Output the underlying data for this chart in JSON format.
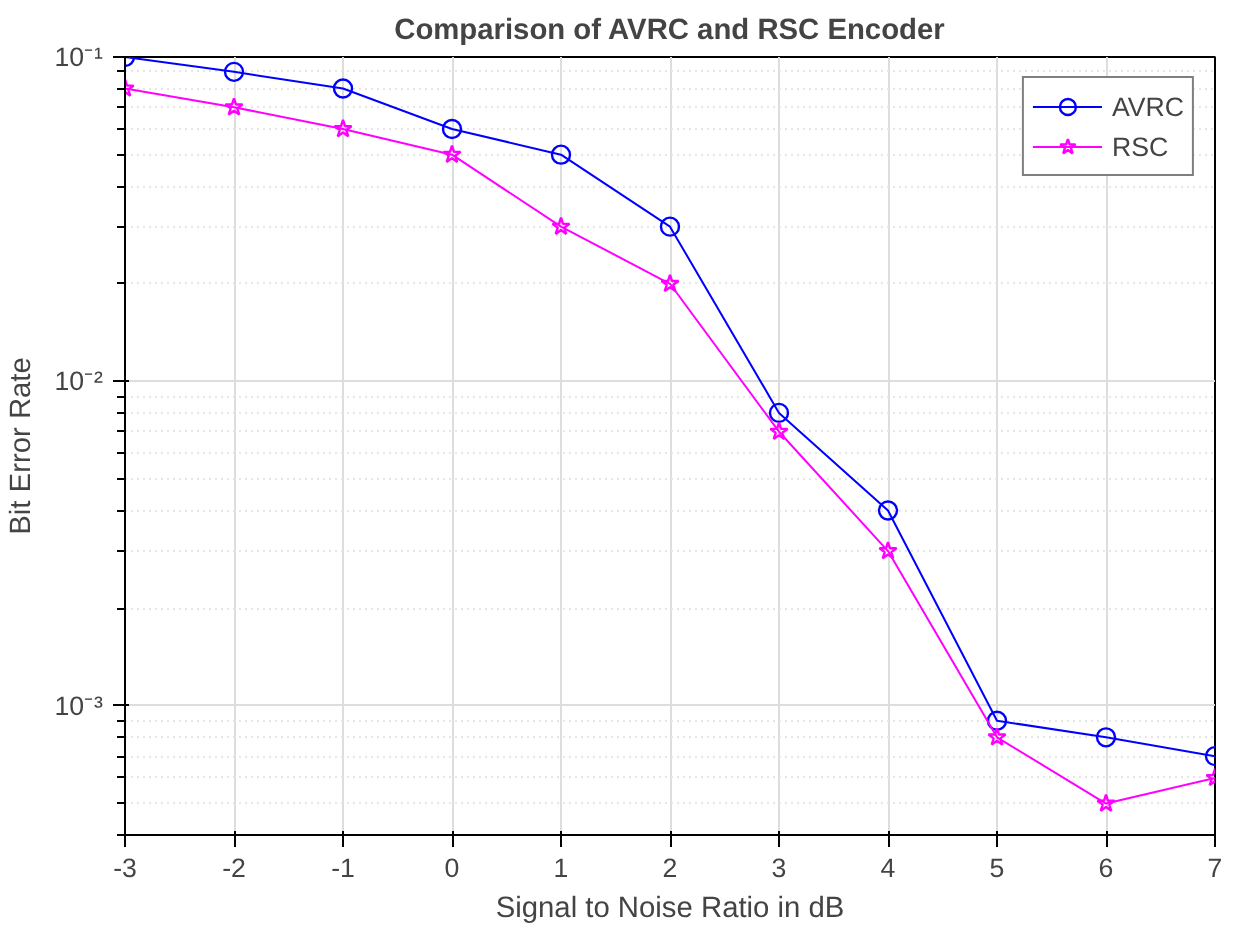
{
  "chart_data": {
    "type": "line",
    "title": "Comparison of AVRC and RSC Encoder",
    "xlabel": "Signal to Noise Ratio in dB",
    "ylabel": "Bit Error Rate",
    "x": [
      -3,
      -2,
      -1,
      0,
      1,
      2,
      3,
      4,
      5,
      6,
      7
    ],
    "series": [
      {
        "name": "AVRC",
        "color": "#0000ff",
        "marker": "circle",
        "values": [
          0.1,
          0.09,
          0.08,
          0.06,
          0.05,
          0.03,
          0.008,
          0.004,
          0.0009,
          0.0008,
          0.0007
        ]
      },
      {
        "name": "RSC",
        "color": "#ff00ff",
        "marker": "star",
        "values": [
          0.08,
          0.07,
          0.06,
          0.05,
          0.03,
          0.02,
          0.007,
          0.003,
          0.0008,
          0.0005,
          0.0006
        ]
      }
    ],
    "xlim": [
      -3,
      7
    ],
    "xticks": [
      -3,
      -2,
      -1,
      0,
      1,
      2,
      3,
      4,
      5,
      6,
      7
    ],
    "ylim": [
      0.0004,
      0.1
    ],
    "yticks": [
      {
        "value": 0.001,
        "label": "10⁻³"
      },
      {
        "value": 0.01,
        "label": "10⁻²"
      },
      {
        "value": 0.1,
        "label": "10⁻¹"
      }
    ],
    "log": "y",
    "grid": true,
    "legend": "top right",
    "line_style": "solid"
  }
}
